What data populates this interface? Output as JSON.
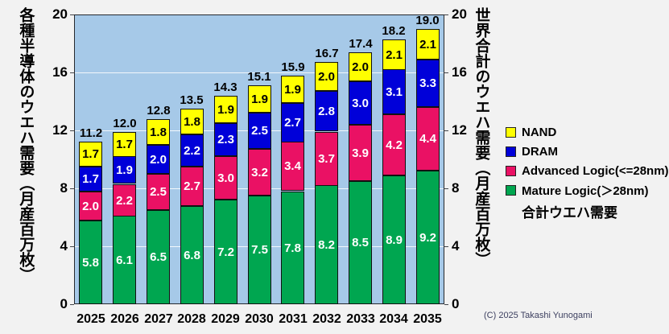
{
  "title_left": "各種半導体のウエハ需要（月産百万枚）",
  "title_right": "世界合計のウエハ需要（月産百万枚）",
  "copyright": "(C) 2025 Takashi Yunogami",
  "colors": {
    "nand": "#ffff00",
    "dram": "#0000d9",
    "advanced_logic": "#ea1164",
    "mature_logic": "#00a650",
    "plot_background": "#a6c9e8",
    "gridline": "#ffffff"
  },
  "legend": {
    "items": [
      {
        "label": "NAND",
        "color": "#ffff00"
      },
      {
        "label": "DRAM",
        "color": "#0000d9"
      },
      {
        "label": "Advanced Logic(<=28nm)",
        "color": "#ea1164"
      },
      {
        "label": "Mature Logic(＞28nm)",
        "color": "#00a650"
      }
    ],
    "total_label": "合計ウエハ需要"
  },
  "chart_data": {
    "type": "bar",
    "stacked": true,
    "title": "",
    "xlabel": "",
    "ylabel_left": "各種半導体のウエハ需要（月産百万枚）",
    "ylabel_right": "世界合計のウエハ需要（月産百万枚）",
    "ylim": [
      0,
      20
    ],
    "yticks": [
      0,
      4,
      8,
      12,
      16,
      20
    ],
    "grid": true,
    "legend_position": "right",
    "categories": [
      "2025",
      "2026",
      "2027",
      "2028",
      "2029",
      "2030",
      "2031",
      "2032",
      "2033",
      "2034",
      "2035"
    ],
    "series": [
      {
        "name": "Mature Logic(＞28nm)",
        "color": "#00a650",
        "label_color": "#ffffff",
        "values": [
          5.8,
          6.1,
          6.5,
          6.8,
          7.2,
          7.5,
          7.8,
          8.2,
          8.5,
          8.9,
          9.2
        ]
      },
      {
        "name": "Advanced Logic(<=28nm)",
        "color": "#ea1164",
        "label_color": "#ffffff",
        "values": [
          2.0,
          2.2,
          2.5,
          2.7,
          3.0,
          3.2,
          3.4,
          3.7,
          3.9,
          4.2,
          4.4
        ]
      },
      {
        "name": "DRAM",
        "color": "#0000d9",
        "label_color": "#ffffff",
        "values": [
          1.7,
          1.9,
          2.0,
          2.2,
          2.3,
          2.5,
          2.7,
          2.8,
          3.0,
          3.1,
          3.3
        ]
      },
      {
        "name": "NAND",
        "color": "#ffff00",
        "label_color": "#000000",
        "values": [
          1.7,
          1.7,
          1.8,
          1.8,
          1.9,
          1.9,
          1.9,
          2.0,
          2.0,
          2.1,
          2.1
        ]
      }
    ],
    "totals": [
      11.2,
      12.0,
      12.8,
      13.5,
      14.3,
      15.1,
      15.9,
      16.7,
      17.4,
      18.2,
      19.0
    ]
  }
}
